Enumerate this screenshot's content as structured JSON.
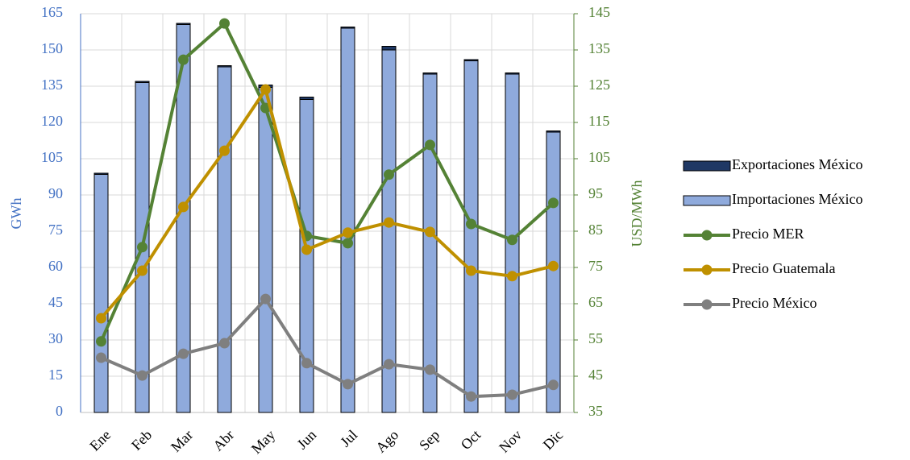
{
  "chart_data": {
    "type": "combo",
    "categories": [
      "Ene",
      "Feb",
      "Mar",
      "Abr",
      "May",
      "Jun",
      "Jul",
      "Ago",
      "Sep",
      "Oct",
      "Nov",
      "Dic"
    ],
    "ylabel": "GWh",
    "y2label": "USD/MWh",
    "ylim": [
      0,
      165
    ],
    "yticks": [
      0,
      15,
      30,
      45,
      60,
      75,
      90,
      105,
      120,
      135,
      150,
      165
    ],
    "y2lim": [
      35,
      145
    ],
    "y2ticks": [
      35,
      45,
      55,
      65,
      75,
      85,
      95,
      105,
      115,
      125,
      135,
      145
    ],
    "grid": true,
    "legend": "right",
    "series": [
      {
        "name": "Exportaciones México",
        "type": "bar",
        "color": "#1f3864",
        "values": [
          0.5,
          0.5,
          0.5,
          0.5,
          1,
          1,
          0.5,
          1.5,
          0.5,
          0.5,
          0.5,
          0.5
        ]
      },
      {
        "name": "Importaciones México",
        "type": "bar",
        "color": "#8faadc",
        "values": [
          98.5,
          136.5,
          160.5,
          143,
          134.5,
          129.5,
          159,
          150,
          140,
          145.5,
          140,
          116
        ]
      },
      {
        "name": "Precio MER",
        "type": "line",
        "axis": "y2",
        "color": "#548235",
        "values": [
          54.6,
          80.6,
          132.3,
          142.3,
          119,
          83.7,
          81.7,
          100.6,
          108.8,
          87,
          82.6,
          92.8
        ]
      },
      {
        "name": "Precio Guatemala",
        "type": "line",
        "axis": "y2",
        "color": "#bf9000",
        "values": [
          61,
          74.1,
          91.7,
          107.2,
          124.1,
          79.9,
          84.6,
          87.4,
          84.8,
          74.1,
          72.6,
          75.4
        ]
      },
      {
        "name": "Precio México",
        "type": "line",
        "axis": "y2",
        "color": "#7f7f7f",
        "values": [
          50.1,
          45.2,
          51.2,
          54.1,
          66.3,
          48.6,
          42.8,
          48.3,
          46.8,
          39.4,
          39.9,
          42.6
        ]
      }
    ]
  }
}
